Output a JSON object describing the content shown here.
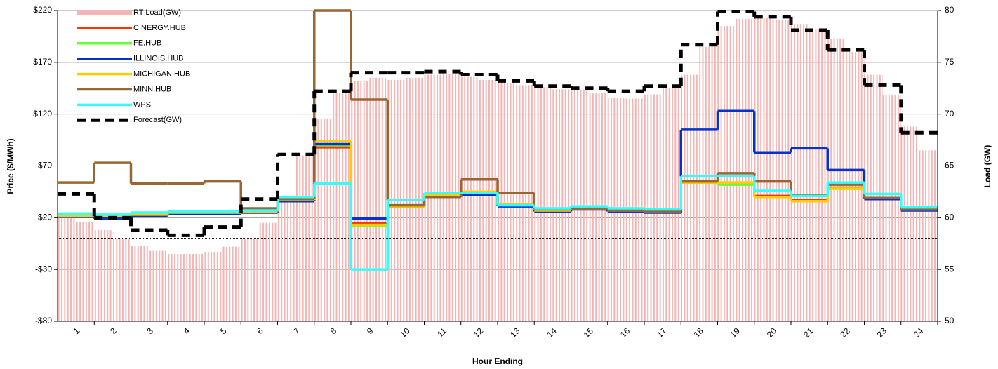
{
  "chart_data": {
    "type": "combo",
    "x_label": "Hour Ending",
    "y_label": "Price ($/MWh)",
    "y2_label": "Load (GW)",
    "categories": [
      "1",
      "2",
      "3",
      "4",
      "5",
      "6",
      "7",
      "8",
      "9",
      "10",
      "11",
      "12",
      "13",
      "14",
      "15",
      "16",
      "17",
      "18",
      "19",
      "20",
      "21",
      "22",
      "23",
      "24"
    ],
    "xlim": [
      0,
      24
    ],
    "ylim": [
      -80,
      220
    ],
    "yticks": [
      {
        "value": -80,
        "label": "-$80"
      },
      {
        "value": -30,
        "label": "-$30"
      },
      {
        "value": 20,
        "label": "$20"
      },
      {
        "value": 70,
        "label": "$70"
      },
      {
        "value": 120,
        "label": "$120"
      },
      {
        "value": 170,
        "label": "$170"
      },
      {
        "value": 220,
        "label": "$220"
      }
    ],
    "y2lim": [
      50,
      80
    ],
    "y2ticks": [
      50,
      55,
      60,
      65,
      70,
      75,
      80
    ],
    "grid": true,
    "legend": "upper-left",
    "series": [
      {
        "name": "RT Load(GW)",
        "type": "bar",
        "axis": "y2",
        "color": "#f4b4b4",
        "x": [
          0.25,
          0.75,
          1.25,
          1.75,
          2.25,
          2.75,
          3.25,
          3.75,
          4.25,
          4.75,
          5.25,
          5.75,
          6.25,
          6.75,
          7.25,
          7.75,
          8.25,
          8.75,
          9.25,
          9.75,
          10.25,
          10.75,
          11.25,
          11.75,
          12.25,
          12.75,
          13.25,
          13.75,
          14.25,
          14.75,
          15.25,
          15.75,
          16.25,
          16.75,
          17.25,
          17.75,
          18.25,
          18.75,
          19.25,
          19.75,
          20.25,
          20.75,
          21.25,
          21.75,
          22.25,
          22.75,
          23.25,
          23.75
        ],
        "values": [
          60.4,
          59.6,
          58.8,
          58.0,
          57.3,
          56.8,
          56.5,
          56.5,
          56.7,
          57.2,
          58.0,
          59.5,
          62.0,
          66.0,
          69.5,
          72.0,
          73.2,
          73.5,
          73.3,
          73.5,
          73.8,
          73.9,
          73.6,
          73.3,
          73.0,
          72.8,
          72.6,
          72.4,
          72.3,
          72.0,
          71.6,
          71.5,
          71.9,
          72.5,
          73.8,
          76.5,
          78.5,
          79.2,
          79.3,
          79.1,
          78.7,
          78.2,
          77.3,
          76.0,
          73.8,
          71.8,
          68.8,
          66.5
        ]
      },
      {
        "name": "CINERGY.HUB",
        "type": "step",
        "color": "#ff3300",
        "values": [
          22,
          21,
          23,
          25,
          25,
          26,
          37,
          88,
          15,
          31,
          41,
          44,
          32,
          27,
          29,
          27,
          26,
          54,
          53,
          41,
          37,
          49,
          39,
          28
        ]
      },
      {
        "name": "FE.HUB",
        "type": "step",
        "color": "#66ff33",
        "values": [
          22,
          21,
          23,
          25,
          25,
          26,
          37,
          90,
          12,
          31,
          41,
          44,
          32,
          27,
          29,
          27,
          26,
          54,
          52,
          40,
          36,
          48,
          39,
          28
        ]
      },
      {
        "name": "ILLINOIS.HUB",
        "type": "step",
        "color": "#0033cc",
        "values": [
          21,
          19,
          22,
          24,
          24,
          25,
          36,
          91,
          19,
          31,
          40,
          42,
          31,
          26,
          28,
          26,
          25,
          105,
          123,
          83,
          87,
          66,
          38,
          27
        ]
      },
      {
        "name": "MICHIGAN.HUB",
        "type": "step",
        "color": "#ffcc00",
        "values": [
          22,
          22,
          23,
          25,
          25,
          26,
          37,
          94,
          13,
          31,
          42,
          45,
          33,
          27,
          29,
          27,
          26,
          54,
          54,
          40,
          36,
          48,
          39,
          28
        ]
      },
      {
        "name": "MINN.HUB",
        "type": "step",
        "color": "#996633",
        "values": [
          54,
          73,
          53,
          53,
          55,
          29,
          38,
          220,
          134,
          32,
          40,
          57,
          44,
          28,
          29,
          27,
          26,
          55,
          63,
          55,
          42,
          52,
          39,
          28
        ]
      },
      {
        "name": "WPS",
        "type": "step",
        "color": "#33ffff",
        "values": [
          24,
          23,
          25,
          26,
          26,
          27,
          40,
          53,
          -30,
          37,
          44,
          44,
          32,
          29,
          31,
          29,
          28,
          60,
          60,
          46,
          41,
          54,
          43,
          30
        ]
      },
      {
        "name": "Forecast(GW)",
        "type": "step",
        "axis": "y2",
        "color": "#000000",
        "dashed": true,
        "values": [
          62.3,
          60.0,
          58.8,
          58.3,
          59.1,
          61.8,
          66.1,
          72.2,
          74.0,
          74.0,
          74.1,
          73.8,
          73.2,
          72.7,
          72.5,
          72.2,
          72.7,
          76.7,
          79.9,
          79.4,
          78.1,
          76.2,
          72.8,
          68.2
        ]
      }
    ]
  }
}
